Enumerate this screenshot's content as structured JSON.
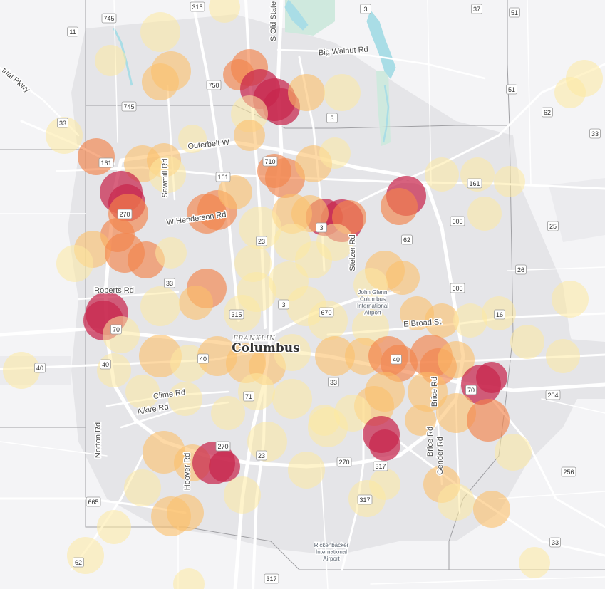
{
  "map": {
    "city": "Columbus",
    "county": "FRANKLIN",
    "colors": {
      "background": "#f4f4f6",
      "urban": "#e3e3e6",
      "water": "#a9dde6",
      "park": "#c9e7dc",
      "road_major": "#ffffff",
      "road_minor": "#ffffff",
      "boundary": "#9a9a9a",
      "heat_low": "#fde9a0",
      "heat_mid": "#fbbf6a",
      "heat_high": "#f2844c",
      "heat_top": "#c8254c"
    },
    "road_labels": [
      {
        "text": "Big Walnut Rd"
      },
      {
        "text": "S Old State"
      },
      {
        "text": "Outerbelt W"
      },
      {
        "text": "Sawmill Rd"
      },
      {
        "text": "W Henderson Rd"
      },
      {
        "text": "Stelzer Rd"
      },
      {
        "text": "Roberts Rd"
      },
      {
        "text": "E Broad St"
      },
      {
        "text": "Clime Rd"
      },
      {
        "text": "Alkire Rd"
      },
      {
        "text": "Norton Rd"
      },
      {
        "text": "Hoover Rd"
      },
      {
        "text": "Brice Rd"
      },
      {
        "text": "Brice Rd"
      },
      {
        "text": "Gender Rd"
      },
      {
        "text": "trial Pkwy"
      }
    ],
    "poi_labels": [
      {
        "lines": [
          "John Glenn",
          "Columbus",
          "International",
          "Airport"
        ]
      },
      {
        "lines": [
          "Rickenbacker",
          "International",
          "Airport"
        ]
      }
    ],
    "shields": [
      "315",
      "3",
      "37",
      "51",
      "745",
      "11",
      "750",
      "745",
      "33",
      "3",
      "51",
      "62",
      "33",
      "710",
      "161",
      "161",
      "161",
      "270",
      "3",
      "605",
      "25",
      "23",
      "62",
      "26",
      "33",
      "3",
      "605",
      "315",
      "670",
      "16",
      "70",
      "40",
      "40",
      "40",
      "40",
      "33",
      "70",
      "204",
      "71",
      "270",
      "23",
      "270",
      "317",
      "256",
      "665",
      "317",
      "33",
      "62",
      "317"
    ],
    "heat_levels": [
      "low",
      "low",
      "mid",
      "high",
      "top"
    ]
  }
}
